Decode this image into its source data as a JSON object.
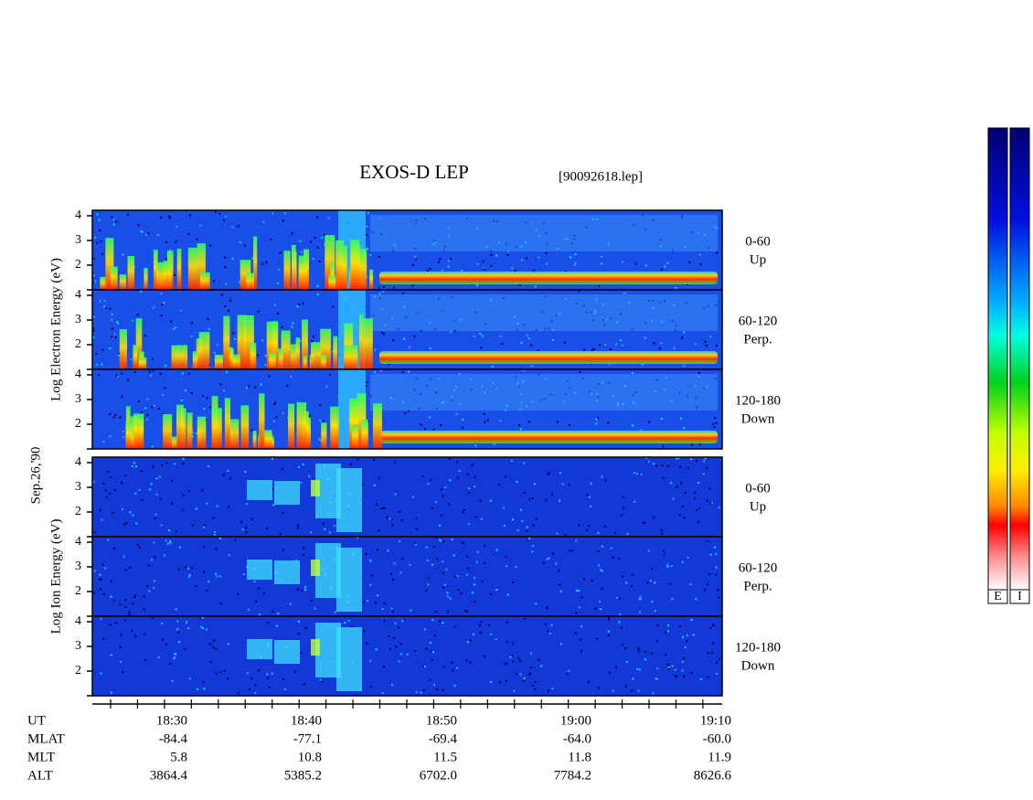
{
  "header": {
    "title": "EXOS-D LEP",
    "file": "[90092618.lep]"
  },
  "date": "Sep.26,'90",
  "panels": [
    {
      "label": "Log Electron Energy (eV)",
      "ticks": [
        "4",
        "3",
        "2"
      ],
      "sectors": [
        {
          "angle": "0-60",
          "direction": "Up"
        },
        {
          "angle": "60-120",
          "direction": "Perp."
        },
        {
          "angle": "120-180",
          "direction": "Down"
        }
      ]
    },
    {
      "label": "Log Ion Energy (eV)",
      "ticks": [
        "4",
        "3",
        "2"
      ],
      "sectors": [
        {
          "angle": "0-60",
          "direction": "Up"
        },
        {
          "angle": "60-120",
          "direction": "Perp."
        },
        {
          "angle": "120-180",
          "direction": "Down"
        }
      ]
    }
  ],
  "time_axis": {
    "rows": [
      {
        "name": "UT",
        "values": [
          "18:30",
          "18:40",
          "18:50",
          "19:00",
          "19:10"
        ]
      },
      {
        "name": "MLAT",
        "values": [
          "-84.4",
          "-77.1",
          "-69.4",
          "-64.0",
          "-60.0"
        ]
      },
      {
        "name": "MLT",
        "values": [
          "5.8",
          "10.8",
          "11.5",
          "11.8",
          "11.9"
        ]
      },
      {
        "name": "ALT",
        "values": [
          "3864.4",
          "5385.2",
          "6702.0",
          "7784.2",
          "8626.6"
        ]
      }
    ]
  },
  "colorbars": [
    "E",
    "I"
  ]
}
